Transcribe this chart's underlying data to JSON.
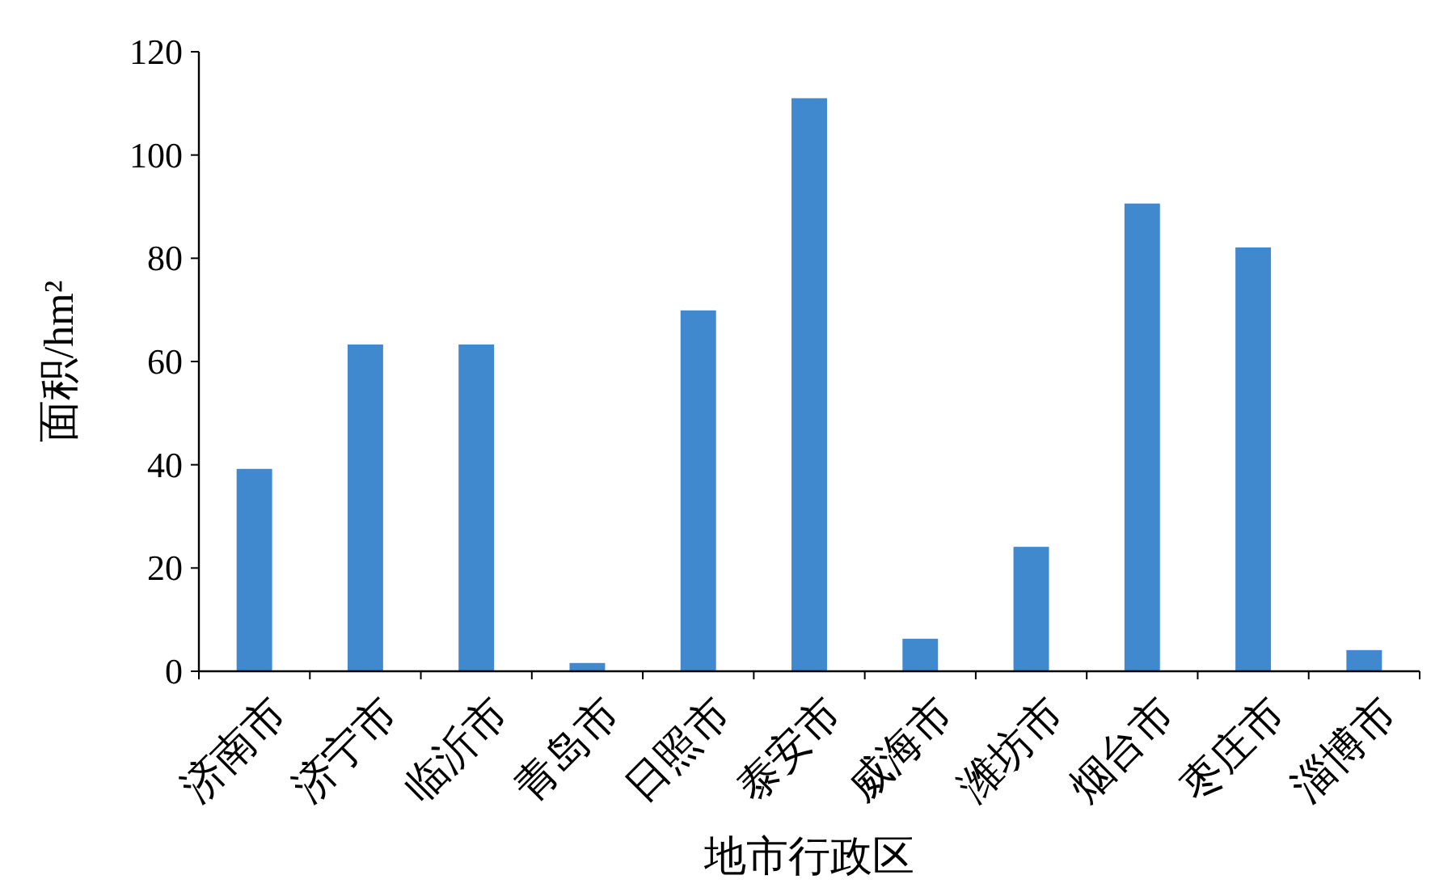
{
  "chart_data": {
    "type": "bar",
    "xlabel": "地市行政区",
    "ylabel": "面积/hm²",
    "categories": [
      "济南市",
      "济宁市",
      "临沂市",
      "青岛市",
      "日照市",
      "泰安市",
      "威海市",
      "潍坊市",
      "烟台市",
      "枣庄市",
      "淄博市"
    ],
    "values": [
      39.2,
      63.3,
      63.3,
      1.6,
      69.9,
      111,
      6.3,
      24.1,
      90.6,
      82.1,
      4.1
    ],
    "color": "#4189cf",
    "ylim": [
      0,
      120
    ],
    "yticks": [
      0,
      20,
      40,
      60,
      80,
      100,
      120
    ]
  }
}
